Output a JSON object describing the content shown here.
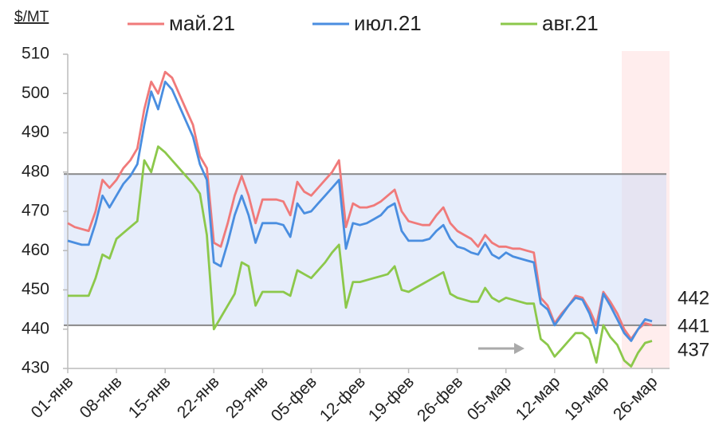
{
  "chart_data": {
    "type": "line",
    "y_label": "$/MT",
    "categories": [
      "01-янв",
      null,
      null,
      null,
      null,
      null,
      null,
      "08-янв",
      null,
      null,
      null,
      null,
      null,
      null,
      "15-янв",
      null,
      null,
      null,
      null,
      null,
      null,
      "22-янв",
      null,
      null,
      null,
      null,
      null,
      null,
      "29-янв",
      null,
      null,
      null,
      null,
      null,
      null,
      "05-фев",
      null,
      null,
      null,
      null,
      null,
      null,
      "12-фев",
      null,
      null,
      null,
      null,
      null,
      null,
      "19-фев",
      null,
      null,
      null,
      null,
      null,
      null,
      "26-фев",
      null,
      null,
      null,
      null,
      null,
      null,
      "05-мар",
      null,
      null,
      null,
      null,
      null,
      null,
      "12-мар",
      null,
      null,
      null,
      null,
      null,
      null,
      "19-мар",
      null,
      null,
      null,
      null,
      null,
      null,
      "26-мар"
    ],
    "series": [
      {
        "name": "май.21",
        "color": "#f07a7a",
        "values": [
          467,
          466,
          465.5,
          465,
          470,
          478,
          476,
          478,
          481,
          483,
          486,
          496,
          503,
          500,
          505.5,
          504,
          500,
          496,
          492,
          484,
          481,
          462,
          461,
          467,
          474,
          479,
          474,
          467,
          473,
          473,
          473,
          472.5,
          469,
          477.5,
          475,
          474,
          476,
          478,
          480,
          483,
          466,
          472,
          471,
          471,
          471.5,
          472.5,
          474,
          475.5,
          470,
          467.5,
          467,
          466.5,
          466.5,
          469,
          471,
          467,
          465,
          464,
          463,
          461,
          464,
          462,
          461,
          461,
          460.5,
          460.5,
          460,
          459.5,
          448,
          446,
          441.5,
          444,
          446,
          448.5,
          448,
          445,
          441,
          449.5,
          447,
          444,
          440,
          437.5,
          440,
          441.5,
          441
        ]
      },
      {
        "name": "июл.21",
        "color": "#4a8ee0",
        "values": [
          462.5,
          462,
          461.5,
          461.5,
          467,
          474,
          471,
          474,
          477,
          479,
          482,
          492,
          500.5,
          496,
          503,
          501,
          497,
          493,
          489,
          482,
          478,
          457,
          456,
          462,
          469,
          474,
          469,
          462,
          467,
          467,
          467,
          466.5,
          463.5,
          472,
          469.5,
          470,
          472,
          474,
          476,
          478,
          460.5,
          467,
          466.5,
          467,
          468,
          469,
          471,
          472,
          465,
          462.5,
          462.5,
          462.5,
          463,
          465,
          466.5,
          463,
          461,
          460.5,
          459.5,
          459,
          462,
          459,
          458,
          459.5,
          458.5,
          458,
          457.5,
          457,
          446.5,
          445,
          441,
          443.5,
          446,
          448,
          447.5,
          444,
          439,
          449,
          446,
          442.5,
          439,
          437,
          440,
          442.5,
          442
        ]
      },
      {
        "name": "авг.21",
        "color": "#8cc84b",
        "values": [
          448.5,
          448.5,
          448.5,
          448.5,
          453,
          459,
          458,
          463,
          464.5,
          466,
          467.5,
          483,
          480,
          486.5,
          485,
          483,
          481,
          479,
          477,
          474.5,
          464,
          440,
          443,
          446,
          449,
          457,
          456,
          446,
          449.5,
          449.5,
          449.5,
          449.5,
          448.5,
          455,
          454,
          453,
          455,
          457,
          459.5,
          461.5,
          445.5,
          452,
          452,
          452.5,
          453,
          453.5,
          454,
          456,
          450,
          449.5,
          450.5,
          451.5,
          452.5,
          453.5,
          454.5,
          449,
          448,
          447.5,
          447,
          447,
          450.5,
          448,
          447,
          448,
          447.5,
          447,
          446.5,
          446.5,
          437.5,
          436,
          433,
          435,
          437,
          439,
          439,
          437.5,
          431.5,
          441,
          438,
          436,
          432,
          430.5,
          434,
          436.5,
          437
        ]
      }
    ],
    "reference_lines": [
      479.5,
      441
    ],
    "ylim": [
      430,
      510
    ],
    "yticks": [
      430,
      440,
      450,
      460,
      470,
      480,
      490,
      500,
      510
    ]
  }
}
